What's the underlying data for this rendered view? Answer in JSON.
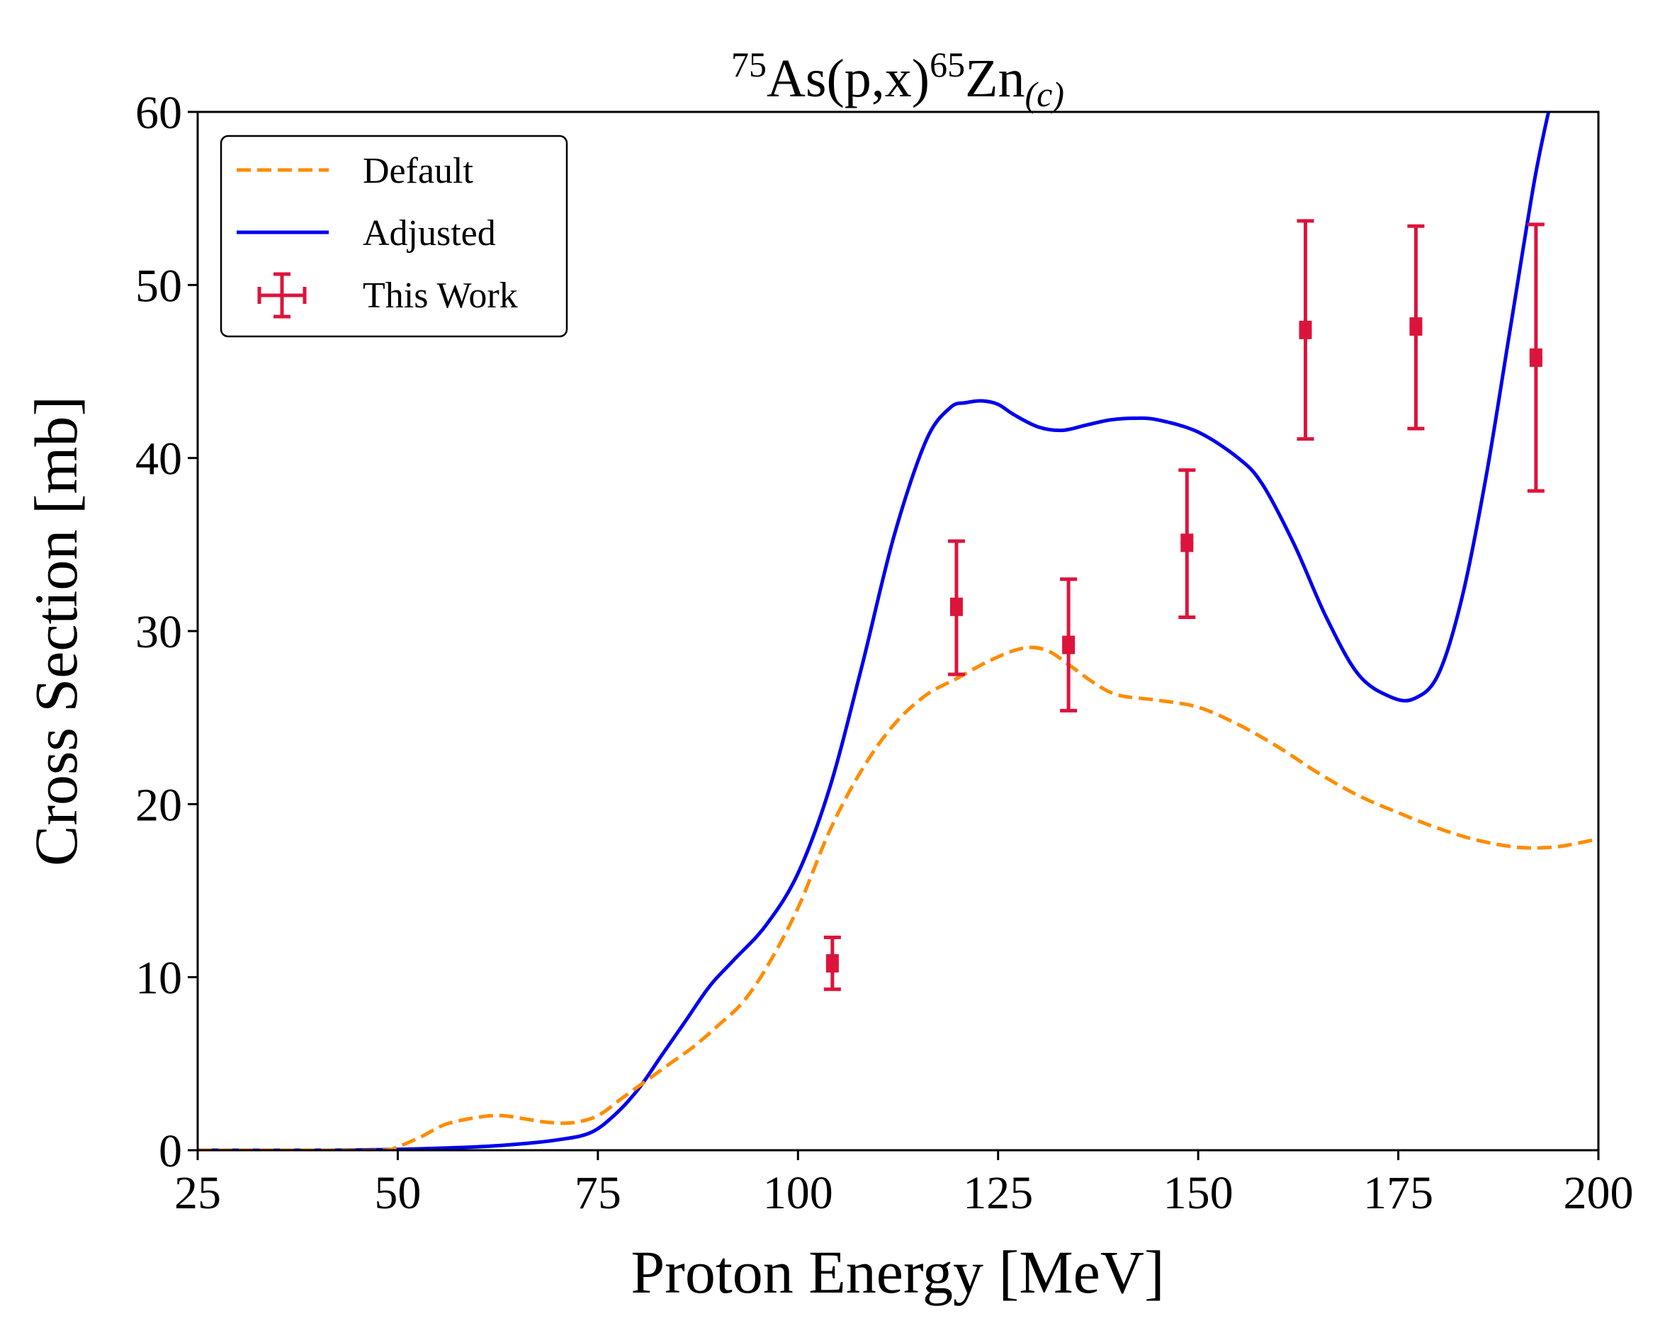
{
  "chart_data": {
    "type": "line",
    "title": {
      "mass_target": "75",
      "target": "As(p,x)",
      "mass_product": "65",
      "product": "Zn",
      "subscript": "(c)"
    },
    "xlabel": "Proton Energy [MeV]",
    "ylabel": "Cross Section [mb]",
    "xlim": [
      25,
      200
    ],
    "ylim": [
      0,
      60
    ],
    "xticks": [
      25,
      50,
      75,
      100,
      125,
      150,
      175,
      200
    ],
    "yticks": [
      0,
      10,
      20,
      30,
      40,
      50,
      60
    ],
    "grid": false,
    "legend_position": "top-left",
    "legend": [
      {
        "label": "Default",
        "style": "dashed",
        "color": "#ff8c00"
      },
      {
        "label": "Adjusted",
        "style": "solid",
        "color": "#0000ee"
      },
      {
        "label": "This Work",
        "style": "errorbar",
        "color": "#dc143c"
      }
    ],
    "series": [
      {
        "name": "Default",
        "color": "#ff8c00",
        "x": [
          25,
          40,
          48,
          50,
          53,
          56,
          60,
          63,
          66,
          69,
          72,
          75,
          78,
          81,
          84,
          87,
          90,
          93,
          96,
          100,
          104,
          108,
          112,
          116,
          120,
          124,
          128,
          131,
          134,
          137,
          140,
          145,
          150,
          155,
          160,
          165,
          170,
          175,
          180,
          185,
          190,
          194,
          197,
          200
        ],
        "y": [
          0,
          0,
          0,
          0.2,
          0.8,
          1.5,
          1.9,
          2.0,
          1.8,
          1.6,
          1.6,
          2.0,
          3.0,
          4.0,
          5.0,
          6.0,
          7.2,
          8.5,
          10.5,
          14.0,
          18.5,
          22.0,
          24.6,
          26.3,
          27.3,
          28.3,
          29.0,
          28.9,
          28.0,
          27.0,
          26.3,
          26.0,
          25.6,
          24.6,
          23.3,
          21.8,
          20.5,
          19.5,
          18.6,
          17.9,
          17.5,
          17.5,
          17.7,
          18.0
        ]
      },
      {
        "name": "Adjusted",
        "color": "#0000ee",
        "x": [
          25,
          40,
          50,
          60,
          65,
          70,
          74,
          77,
          80,
          83,
          86,
          89,
          92,
          96,
          100,
          104,
          108,
          112,
          116,
          119,
          121,
          123,
          125,
          127,
          130,
          133,
          136,
          139,
          142,
          145,
          150,
          155,
          158,
          162,
          166,
          170,
          174,
          177,
          180,
          183,
          186,
          189,
          192,
          194
        ],
        "y": [
          0,
          0,
          0.05,
          0.2,
          0.35,
          0.6,
          1.0,
          2.0,
          3.5,
          5.5,
          7.5,
          9.5,
          11.0,
          13.0,
          16.0,
          21.0,
          28.0,
          35.5,
          41.0,
          42.9,
          43.2,
          43.3,
          43.1,
          42.5,
          41.8,
          41.6,
          41.9,
          42.2,
          42.3,
          42.2,
          41.5,
          40.0,
          38.5,
          35.0,
          30.8,
          27.5,
          26.2,
          26.1,
          27.5,
          32.0,
          39.0,
          47.5,
          56.0,
          60.5
        ]
      }
    ],
    "errorbar_series": {
      "name": "This Work",
      "color": "#dc143c",
      "points": [
        {
          "x": 104.3,
          "y": 10.8,
          "y_low": 9.3,
          "y_high": 12.3
        },
        {
          "x": 119.8,
          "y": 31.4,
          "y_low": 27.5,
          "y_high": 35.2
        },
        {
          "x": 133.8,
          "y": 29.2,
          "y_low": 25.4,
          "y_high": 33.0
        },
        {
          "x": 148.6,
          "y": 35.1,
          "y_low": 30.8,
          "y_high": 39.3
        },
        {
          "x": 163.4,
          "y": 47.4,
          "y_low": 41.1,
          "y_high": 53.7
        },
        {
          "x": 177.2,
          "y": 47.6,
          "y_low": 41.7,
          "y_high": 53.4
        },
        {
          "x": 192.2,
          "y": 45.8,
          "y_low": 38.1,
          "y_high": 53.5
        }
      ]
    }
  }
}
